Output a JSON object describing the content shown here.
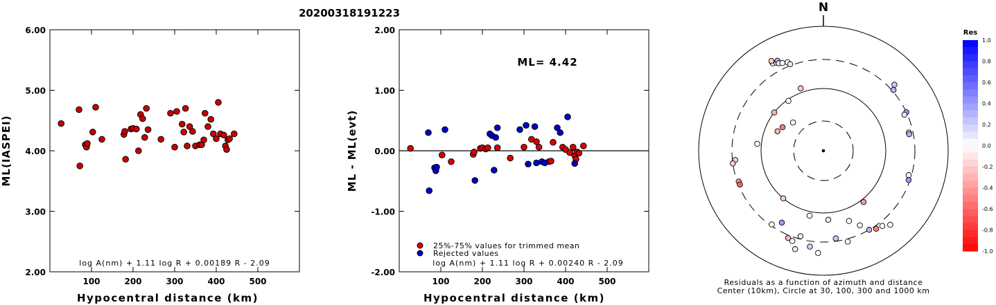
{
  "title": "20200318191223",
  "chart_data": [
    {
      "type": "scatter",
      "xlabel": "Hypocentral distance (km)",
      "ylabel": "ML(IASPEI)",
      "xlim": [
        0,
        600
      ],
      "ylim": [
        2.0,
        6.0
      ],
      "xticks": [
        "100",
        "200",
        "300",
        "400",
        "500"
      ],
      "yticks": [
        "2.00",
        "3.00",
        "4.00",
        "5.00",
        "6.00"
      ],
      "formula": "log A(nm) + 1.11 log R + 0.00189 R - 2.09",
      "points": [
        [
          27,
          4.45
        ],
        [
          70,
          4.68
        ],
        [
          72,
          3.75
        ],
        [
          85,
          4.1
        ],
        [
          88,
          4.06
        ],
        [
          90,
          4.12
        ],
        [
          103,
          4.31
        ],
        [
          110,
          4.72
        ],
        [
          125,
          4.19
        ],
        [
          178,
          4.27
        ],
        [
          180,
          4.32
        ],
        [
          182,
          3.86
        ],
        [
          195,
          4.36
        ],
        [
          200,
          4.37
        ],
        [
          208,
          4.36
        ],
        [
          213,
          4.0
        ],
        [
          218,
          4.6
        ],
        [
          223,
          4.53
        ],
        [
          228,
          4.22
        ],
        [
          232,
          4.7
        ],
        [
          236,
          4.35
        ],
        [
          267,
          4.19
        ],
        [
          290,
          4.62
        ],
        [
          300,
          4.06
        ],
        [
          305,
          4.65
        ],
        [
          318,
          4.44
        ],
        [
          322,
          4.31
        ],
        [
          326,
          4.7
        ],
        [
          330,
          4.08
        ],
        [
          336,
          4.4
        ],
        [
          343,
          4.32
        ],
        [
          350,
          4.08
        ],
        [
          360,
          4.1
        ],
        [
          365,
          4.1
        ],
        [
          370,
          4.18
        ],
        [
          373,
          4.62
        ],
        [
          380,
          4.4
        ],
        [
          387,
          4.52
        ],
        [
          393,
          4.28
        ],
        [
          400,
          4.2
        ],
        [
          405,
          4.8
        ],
        [
          410,
          4.28
        ],
        [
          418,
          4.26
        ],
        [
          422,
          4.08
        ],
        [
          425,
          4.02
        ],
        [
          428,
          4.18
        ],
        [
          432,
          4.2
        ],
        [
          443,
          4.28
        ]
      ]
    },
    {
      "type": "scatter",
      "xlabel": "Hypocentral distance (km)",
      "ylabel": "ML - ML(evt)",
      "xlim": [
        0,
        600
      ],
      "ylim": [
        -2.0,
        2.0
      ],
      "xticks": [
        "100",
        "200",
        "300",
        "400",
        "500"
      ],
      "yticks": [
        "-2.00",
        "-1.00",
        "0.00",
        "1.00",
        "2.00"
      ],
      "annotation": "ML= 4.42",
      "formula": "log A(nm) + 1.11 log R + 0.00240 R - 2.09",
      "legend": [
        {
          "label": "25%-75% values for trimmed mean",
          "color": "#dd0000"
        },
        {
          "label": "Rejected values",
          "color": "#0000cc"
        }
      ],
      "series": [
        {
          "color": "#dd0000",
          "points": [
            [
              27,
              0.04
            ],
            [
              103,
              -0.07
            ],
            [
              125,
              -0.18
            ],
            [
              178,
              -0.06
            ],
            [
              180,
              -0.02
            ],
            [
              195,
              0.04
            ],
            [
              200,
              0.05
            ],
            [
              208,
              0.03
            ],
            [
              213,
              0.05
            ],
            [
              236,
              0.05
            ],
            [
              267,
              -0.12
            ],
            [
              300,
              0.06
            ],
            [
              318,
              0.19
            ],
            [
              330,
              0.15
            ],
            [
              336,
              0.06
            ],
            [
              360,
              -0.18
            ],
            [
              365,
              -0.17
            ],
            [
              370,
              0.14
            ],
            [
              393,
              0.06
            ],
            [
              400,
              0.02
            ],
            [
              410,
              -0.03
            ],
            [
              418,
              0.06
            ],
            [
              422,
              -0.08
            ],
            [
              425,
              -0.14
            ],
            [
              428,
              -0.02
            ],
            [
              432,
              -0.04
            ],
            [
              443,
              0.08
            ]
          ]
        },
        {
          "color": "#0000cc",
          "points": [
            [
              70,
              0.3
            ],
            [
              72,
              -0.66
            ],
            [
              85,
              -0.28
            ],
            [
              88,
              -0.33
            ],
            [
              90,
              -0.27
            ],
            [
              110,
              0.35
            ],
            [
              182,
              -0.49
            ],
            [
              218,
              0.28
            ],
            [
              223,
              0.25
            ],
            [
              228,
              -0.32
            ],
            [
              232,
              0.22
            ],
            [
              236,
              0.38
            ],
            [
              290,
              0.35
            ],
            [
              305,
              0.42
            ],
            [
              310,
              -0.22
            ],
            [
              326,
              0.4
            ],
            [
              330,
              -0.2
            ],
            [
              343,
              -0.18
            ],
            [
              350,
              -0.2
            ],
            [
              380,
              0.38
            ],
            [
              387,
              0.3
            ],
            [
              405,
              0.56
            ],
            [
              422,
              -0.21
            ]
          ]
        }
      ]
    },
    {
      "type": "scatter",
      "north_label": "N",
      "caption_line1": "Residuals as a function of azimuth and distance",
      "caption_line2": "Center (10km), Circle at 30, 100, 300 and 1000 km",
      "colorbar_title": "Res",
      "colorbar_ticks": [
        "1.0",
        "0.8",
        "0.6",
        "0.4",
        "0.2",
        "0.0",
        "-0.2",
        "-0.4",
        "-0.6",
        "-0.8",
        "-1.0"
      ],
      "points_polar": [
        [
          330,
          0.0
        ],
        [
          330,
          -0.1
        ],
        [
          330,
          -0.2
        ],
        [
          332,
          0.0
        ],
        [
          333,
          0.3
        ],
        [
          333,
          0.1
        ],
        [
          335,
          0.0
        ],
        [
          338,
          0.0
        ],
        [
          339,
          0.1
        ],
        [
          47,
          0.2
        ],
        [
          49,
          0.3
        ],
        [
          65,
          0.4
        ],
        [
          66,
          0.1
        ],
        [
          78,
          0.0
        ],
        [
          79,
          0.3
        ],
        [
          106,
          0.0
        ],
        [
          109,
          0.4
        ],
        [
          250,
          -0.4
        ],
        [
          264,
          -0.2
        ],
        [
          276,
          0.0
        ],
        [
          293,
          -0.3
        ],
        [
          300,
          -0.5
        ],
        [
          308,
          -0.3
        ],
        [
          313,
          0.0
        ],
        [
          325,
          0.0
        ],
        [
          340,
          -0.2
        ],
        [
          138,
          0.0
        ],
        [
          142,
          0.0
        ],
        [
          146,
          -0.5
        ],
        [
          150,
          0.3
        ],
        [
          154,
          0.0
        ],
        [
          165,
          0.0
        ],
        [
          172,
          0.2
        ],
        [
          176,
          -0.1
        ],
        [
          183,
          0.0
        ],
        [
          188,
          0.2
        ],
        [
          192,
          0.0
        ],
        [
          196,
          -0.1
        ],
        [
          199,
          0.0
        ],
        [
          202,
          -0.3
        ],
        [
          210,
          0.4
        ],
        [
          215,
          0.0
        ],
        [
          220,
          -0.2
        ],
        [
          142,
          -0.4
        ],
        [
          160,
          0.0
        ],
        [
          195,
          -0.1
        ],
        [
          262,
          -0.2
        ],
        [
          248,
          -0.6
        ]
      ]
    }
  ]
}
